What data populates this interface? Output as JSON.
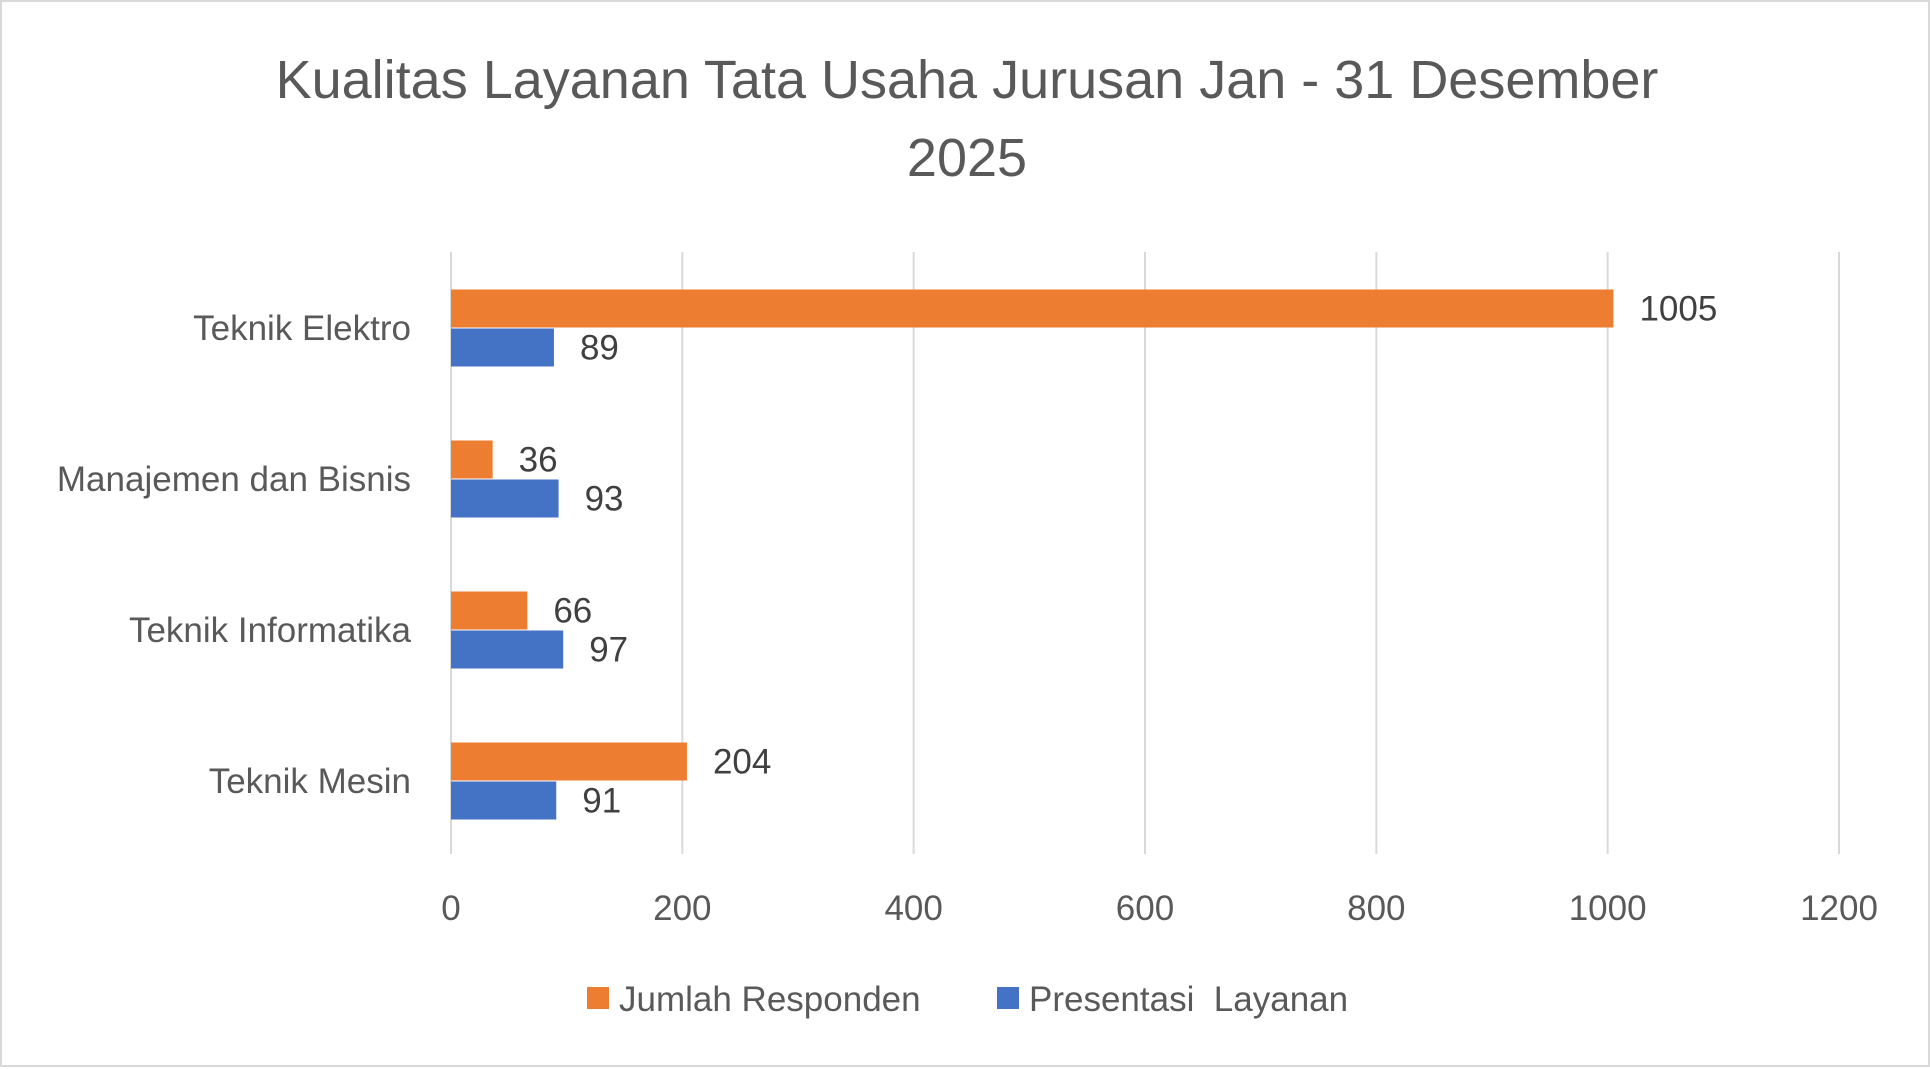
{
  "chart_data": {
    "type": "bar",
    "orientation": "horizontal",
    "title": "Kualitas Layanan Tata Usaha Jurusan Jan - 31 Desember 2025",
    "title_lines": [
      "Kualitas Layanan Tata Usaha Jurusan Jan - 31 Desember",
      "2025"
    ],
    "categories": [
      "Teknik Elektro",
      "Manajemen dan Bisnis",
      "Teknik Informatika",
      "Teknik Mesin"
    ],
    "series": [
      {
        "name": "Jumlah Responden",
        "color": "#ed7d31",
        "values": [
          1005,
          36,
          66,
          204
        ]
      },
      {
        "name": "Presentasi  Layanan",
        "color": "#4472c4",
        "values": [
          89,
          93,
          97,
          91
        ]
      }
    ],
    "xlim": [
      0,
      1200
    ],
    "xticks": [
      0,
      200,
      400,
      600,
      800,
      1000,
      1200
    ],
    "xlabel": "",
    "ylabel": "",
    "grid": true,
    "legend_position": "bottom"
  }
}
